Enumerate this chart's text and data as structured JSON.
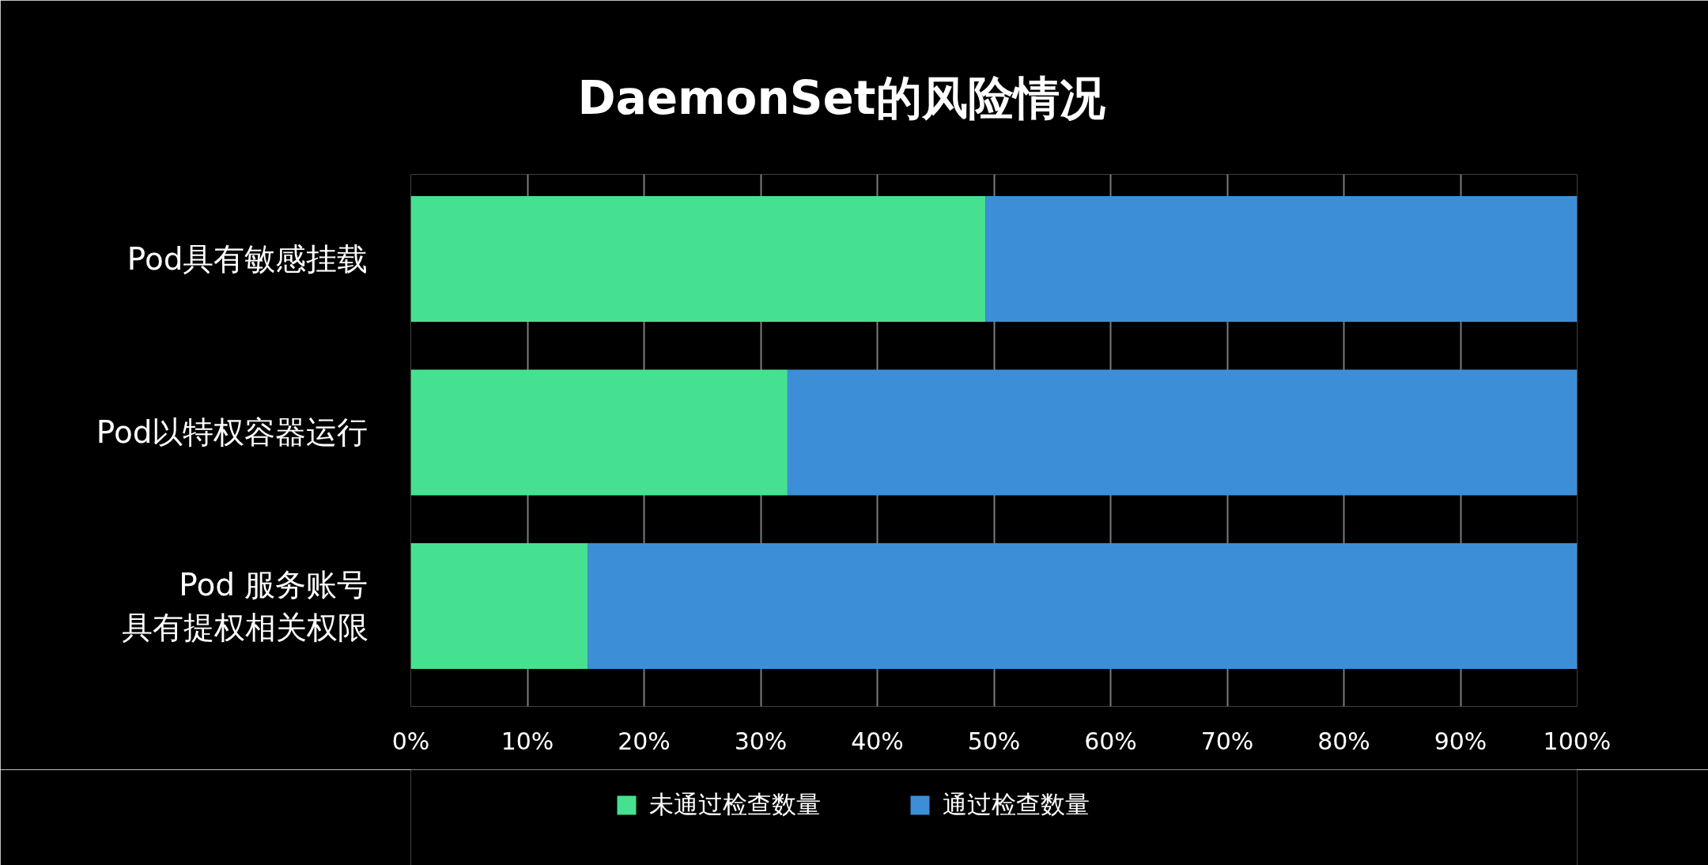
{
  "chart_data": {
    "type": "bar",
    "orientation": "horizontal",
    "stacked": true,
    "title": "DaemonSet的风险情况",
    "categories": [
      "Pod具有敏感挂载",
      "Pod以特权容器运行",
      "Pod 服务账号具有提权相关权限"
    ],
    "series": [
      {
        "name": "未通过检查数量",
        "color": "#45e190",
        "values": [
          49.3,
          32.3,
          15.2
        ]
      },
      {
        "name": "通过检查数量",
        "color": "#3c8fd6",
        "values": [
          50.7,
          67.7,
          84.8
        ]
      }
    ],
    "xlim": [
      0,
      100
    ],
    "xticks": [
      {
        "value": 0,
        "label": "0%"
      },
      {
        "value": 10,
        "label": "10%"
      },
      {
        "value": 20,
        "label": "20%"
      },
      {
        "value": 30,
        "label": "30%"
      },
      {
        "value": 40,
        "label": "40%"
      },
      {
        "value": 50,
        "label": "50%"
      },
      {
        "value": 60,
        "label": "60%"
      },
      {
        "value": 70,
        "label": "70%"
      },
      {
        "value": 80,
        "label": "80%"
      },
      {
        "value": 90,
        "label": "90%"
      },
      {
        "value": 100,
        "label": "100%"
      }
    ],
    "grid": "x",
    "legend": "bottom"
  }
}
